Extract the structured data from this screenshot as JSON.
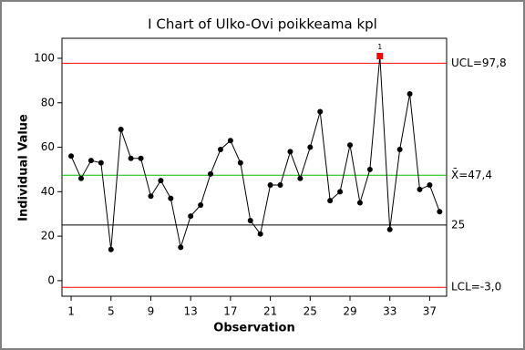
{
  "chart_data": {
    "type": "line",
    "title": "I Chart of Ulko-Ovi poikkeama kpl",
    "x_label": "Observation",
    "y_label": "Individual Value",
    "x": [
      1,
      2,
      3,
      4,
      5,
      6,
      7,
      8,
      9,
      10,
      11,
      12,
      13,
      14,
      15,
      16,
      17,
      18,
      19,
      20,
      21,
      22,
      23,
      24,
      25,
      26,
      27,
      28,
      29,
      30,
      31,
      32,
      33,
      34,
      35,
      36,
      37,
      38
    ],
    "series": [
      {
        "color": "#000000",
        "values": [
          56,
          46,
          54,
          53,
          14,
          68,
          55,
          55,
          38,
          45,
          37,
          15,
          29,
          34,
          48,
          59,
          63,
          53,
          27,
          21,
          43,
          43,
          58,
          46,
          60,
          76,
          36,
          40,
          61,
          35,
          50,
          101,
          23,
          59,
          84,
          41,
          43,
          31
        ]
      }
    ],
    "xlim": [
      0.08,
      38.7
    ],
    "ylim": [
      -7,
      109
    ],
    "xticks": [
      1,
      5,
      9,
      13,
      17,
      21,
      25,
      29,
      33,
      37
    ],
    "yticks": [
      0,
      20,
      40,
      60,
      80,
      100
    ],
    "reference_lines": [
      {
        "value": 97.8,
        "label": "UCL=97,8",
        "color": "#ff0000"
      },
      {
        "value": 47.4,
        "label": "X̄=47,4",
        "color": "#00c000"
      },
      {
        "value": 25,
        "label": "25",
        "color": "#000000"
      },
      {
        "value": -3.0,
        "label": "LCL=-3,0",
        "color": "#ff0000"
      }
    ],
    "annotations": [
      {
        "x": 32,
        "text": "1",
        "color": "#ff0000"
      }
    ]
  }
}
